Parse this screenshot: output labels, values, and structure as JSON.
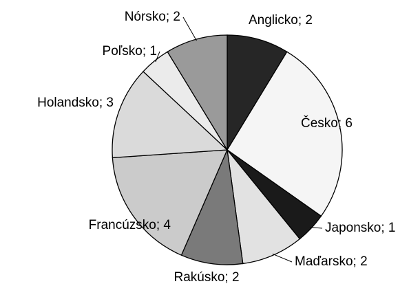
{
  "chart_data": {
    "type": "pie",
    "values": [
      2,
      6,
      1,
      2,
      2,
      4,
      3,
      1,
      2
    ],
    "value_labels": [
      "Anglicko; 2",
      "Česko; 6",
      "Japonsko; 1",
      "Maďarsko; 2",
      "Rakúsko; 2",
      "Francúzsko; 4",
      "Holandsko; 3",
      "Poľsko; 1",
      "Nórsko; 2"
    ],
    "colors": [
      "#262626",
      "#f5f5f5",
      "#1a1a1a",
      "#e2e2e2",
      "#7a7a7a",
      "#cbcbcb",
      "#dadada",
      "#ebebeb",
      "#9a9a9a"
    ]
  }
}
